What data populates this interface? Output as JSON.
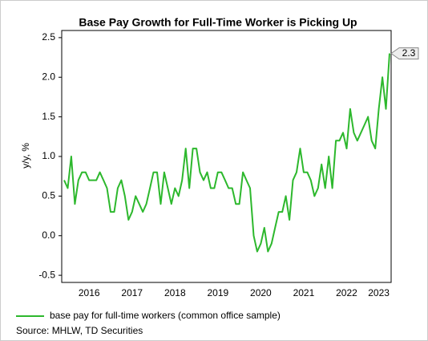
{
  "chart_data": {
    "type": "line",
    "title": "Base Pay Growth for Full-Time Worker is Picking Up",
    "y_label": "y/y, %",
    "source": "Source: MHLW, TD Securities",
    "categories": [
      null,
      null,
      null,
      null,
      null,
      null,
      null,
      "2016",
      null,
      null,
      null,
      null,
      null,
      null,
      null,
      null,
      null,
      null,
      null,
      "2017",
      null,
      null,
      null,
      null,
      null,
      null,
      null,
      null,
      null,
      null,
      null,
      "2018",
      null,
      null,
      null,
      null,
      null,
      null,
      null,
      null,
      null,
      null,
      null,
      "2019",
      null,
      null,
      null,
      null,
      null,
      null,
      null,
      null,
      null,
      null,
      null,
      "2020",
      null,
      null,
      null,
      null,
      null,
      null,
      null,
      null,
      null,
      null,
      null,
      "2021",
      null,
      null,
      null,
      null,
      null,
      null,
      null,
      null,
      null,
      null,
      null,
      "2022",
      null,
      null,
      null,
      null,
      null,
      null,
      null,
      null,
      "2023",
      null,
      null,
      null
    ],
    "series": [
      {
        "name": "base pay for full-time workers (common office sample)",
        "color": "#2db82d",
        "values": [
          0.7,
          0.6,
          1.0,
          0.4,
          0.7,
          0.8,
          0.8,
          0.7,
          0.7,
          0.7,
          0.8,
          0.7,
          0.6,
          0.3,
          0.3,
          0.6,
          0.7,
          0.5,
          0.2,
          0.3,
          0.5,
          0.4,
          0.3,
          0.4,
          0.6,
          0.8,
          0.8,
          0.4,
          0.8,
          0.6,
          0.4,
          0.6,
          0.5,
          0.7,
          1.1,
          0.6,
          1.1,
          1.1,
          0.8,
          0.7,
          0.8,
          0.6,
          0.6,
          0.8,
          0.8,
          0.7,
          0.6,
          0.6,
          0.4,
          0.4,
          0.8,
          0.7,
          0.6,
          0.0,
          -0.2,
          -0.1,
          0.1,
          -0.2,
          -0.1,
          0.1,
          0.3,
          0.3,
          0.5,
          0.2,
          0.7,
          0.8,
          1.1,
          0.8,
          0.8,
          0.7,
          0.5,
          0.6,
          0.9,
          0.6,
          1.0,
          0.6,
          1.2,
          1.2,
          1.3,
          1.1,
          1.6,
          1.3,
          1.2,
          1.3,
          1.4,
          1.5,
          1.2,
          1.1,
          1.6,
          2.0,
          1.6,
          2.3
        ]
      }
    ],
    "ylim": [
      -0.59,
      2.59
    ],
    "yticks": [
      -0.5,
      {
        "value": 0,
        "label": "0.0"
      },
      0.5,
      {
        "value": 1,
        "label": "1.0"
      },
      1.5,
      {
        "value": 2,
        "label": "2.0"
      },
      2.5
    ],
    "grid": false,
    "legend": "bottom"
  }
}
